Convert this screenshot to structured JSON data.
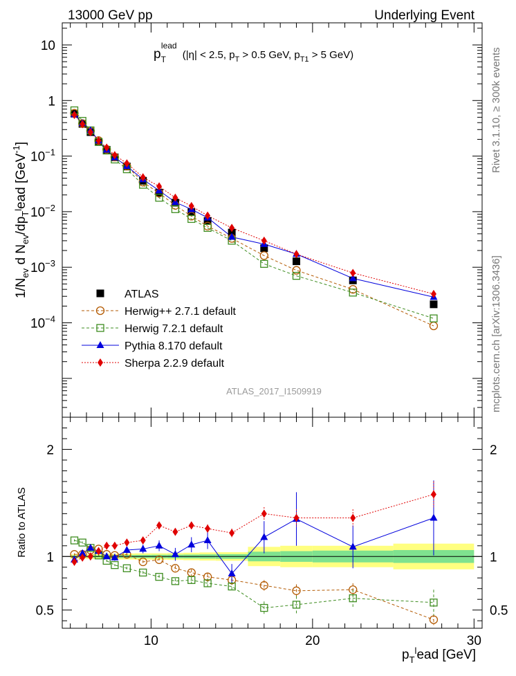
{
  "header": {
    "left": "13000 GeV pp",
    "right": "Underlying Event"
  },
  "side_labels": {
    "rivet": "Rivet 3.1.10, ≥ 300k events",
    "mcplots": "mcplots.cern.ch [arXiv:1306.3436]"
  },
  "plot_title": "p_T^lead (|η| < 2.5, p_T > 0.5 GeV, p_T1 > 5 GeV)",
  "watermark": "ATLAS_2017_I1509919",
  "chart_data": [
    {
      "type": "scatter",
      "panel": "main",
      "xlim": [
        4.5,
        30.5
      ],
      "ylim": [
        2e-06,
        25
      ],
      "yscale": "log",
      "ylabel": "1/N_ev d N_ev/dp_T^lead [GeV^-1]",
      "x": [
        5.25,
        5.75,
        6.25,
        6.75,
        7.25,
        7.75,
        8.5,
        9.5,
        10.5,
        11.5,
        12.5,
        13.5,
        15,
        17,
        19,
        22.5,
        27.5
      ],
      "legend_placement": "lower-left",
      "series": [
        {
          "name": "ATLAS",
          "color": "#000000",
          "marker": "square",
          "values": [
            0.58,
            0.38,
            0.27,
            0.18,
            0.13,
            0.095,
            0.065,
            0.036,
            0.022,
            0.0145,
            0.0098,
            0.0068,
            0.0042,
            0.0022,
            0.00128,
            0.00058,
            0.000215
          ]
        },
        {
          "name": "Herwig++ 2.7.1 default",
          "color": "#b35900",
          "marker": "open-circle",
          "line": "dashed",
          "values": [
            0.59,
            0.385,
            0.285,
            0.19,
            0.132,
            0.096,
            0.066,
            0.034,
            0.0215,
            0.013,
            0.0083,
            0.0055,
            0.0033,
            0.00162,
            0.00088,
            0.0004,
            8.8e-05
          ]
        },
        {
          "name": "Herwig 7.2.1 default",
          "color": "#3d8c1f",
          "marker": "open-square",
          "line": "dashed",
          "values": [
            0.665,
            0.43,
            0.29,
            0.18,
            0.126,
            0.087,
            0.058,
            0.0305,
            0.0178,
            0.0111,
            0.0074,
            0.0051,
            0.003,
            0.00115,
            0.0007,
            0.00035,
            0.00012
          ]
        },
        {
          "name": "Pythia 8.170 default",
          "color": "#0000dd",
          "marker": "triangle",
          "line": "solid",
          "values": [
            0.56,
            0.39,
            0.29,
            0.19,
            0.13,
            0.094,
            0.066,
            0.038,
            0.024,
            0.0148,
            0.011,
            0.0078,
            0.0035,
            0.0026,
            0.00173,
            0.00063,
            0.00029
          ]
        },
        {
          "name": "Sherpa 2.2.9 default",
          "color": "#e00000",
          "marker": "diamond",
          "line": "dotted",
          "values": [
            0.55,
            0.375,
            0.27,
            0.19,
            0.142,
            0.104,
            0.074,
            0.0415,
            0.0285,
            0.0178,
            0.0126,
            0.0085,
            0.0051,
            0.003,
            0.00172,
            0.00079,
            0.00033
          ]
        }
      ]
    },
    {
      "type": "scatter",
      "panel": "ratio",
      "xlim": [
        4.5,
        30.5
      ],
      "ylim": [
        0.33,
        2.3
      ],
      "yticks": [
        0.5,
        1,
        2
      ],
      "xticks": [
        10,
        20,
        30
      ],
      "xlabel": "p_T^lead [GeV]",
      "ylabel": "Ratio to ATLAS",
      "band_edges": [
        5,
        5.5,
        6,
        6.5,
        7,
        7.5,
        8,
        9,
        10,
        11,
        12,
        13,
        14,
        16,
        18,
        20,
        25,
        30
      ],
      "band_stat": [
        0.01,
        0.01,
        0.01,
        0.01,
        0.012,
        0.012,
        0.014,
        0.015,
        0.016,
        0.017,
        0.018,
        0.02,
        0.022,
        0.045,
        0.05,
        0.055,
        0.06
      ],
      "band_total": [
        0.02,
        0.02,
        0.022,
        0.022,
        0.025,
        0.025,
        0.028,
        0.03,
        0.03,
        0.032,
        0.035,
        0.038,
        0.04,
        0.09,
        0.1,
        0.1,
        0.12
      ],
      "series": [
        {
          "name": "Herwig++ 2.7.1 default",
          "values": [
            1.02,
            1.02,
            1.06,
            1.07,
            1.02,
            1.01,
            1.02,
            0.95,
            0.97,
            0.89,
            0.85,
            0.81,
            0.78,
            0.73,
            0.68,
            0.69,
            0.41
          ],
          "errors": [
            0.01,
            0.01,
            0.01,
            0.01,
            0.01,
            0.01,
            0.015,
            0.015,
            0.02,
            0.025,
            0.03,
            0.03,
            0.03,
            0.05,
            0.06,
            0.06,
            0.05
          ]
        },
        {
          "name": "Herwig 7.2.1 default",
          "values": [
            1.15,
            1.13,
            1.08,
            1.01,
            0.96,
            0.92,
            0.89,
            0.85,
            0.81,
            0.77,
            0.78,
            0.75,
            0.72,
            0.52,
            0.55,
            0.61,
            0.57
          ],
          "errors": [
            0.01,
            0.01,
            0.01,
            0.01,
            0.01,
            0.01,
            0.015,
            0.015,
            0.02,
            0.025,
            0.03,
            0.035,
            0.04,
            0.06,
            0.08,
            0.08,
            0.12
          ]
        },
        {
          "name": "Pythia 8.170 default",
          "values": [
            0.97,
            1.03,
            1.08,
            1.05,
            1.0,
            0.99,
            1.06,
            1.07,
            1.1,
            1.02,
            1.11,
            1.15,
            0.84,
            1.18,
            1.35,
            1.09,
            1.36
          ],
          "errors": [
            0.02,
            0.02,
            0.02,
            0.02,
            0.02,
            0.03,
            0.03,
            0.04,
            0.05,
            0.06,
            0.07,
            0.08,
            0.09,
            0.15,
            0.25,
            0.2,
            0.35
          ]
        },
        {
          "name": "Sherpa 2.2.9 default",
          "values": [
            0.95,
            0.99,
            1.0,
            1.05,
            1.1,
            1.1,
            1.13,
            1.15,
            1.29,
            1.23,
            1.29,
            1.26,
            1.22,
            1.4,
            1.36,
            1.36,
            1.58
          ],
          "errors": [
            0.01,
            0.01,
            0.01,
            0.015,
            0.015,
            0.015,
            0.02,
            0.02,
            0.03,
            0.03,
            0.035,
            0.04,
            0.04,
            0.06,
            0.08,
            0.08,
            0.12
          ]
        }
      ]
    }
  ]
}
